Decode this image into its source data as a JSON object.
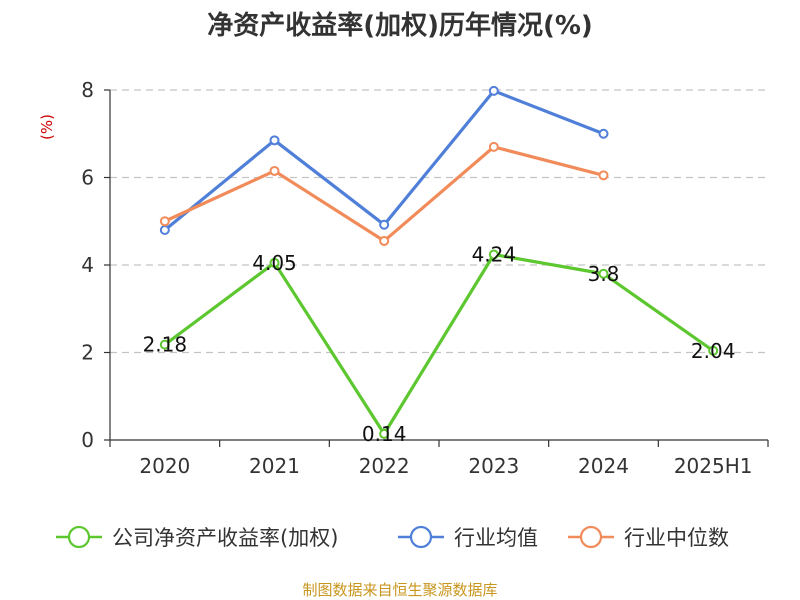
{
  "chart_data": {
    "type": "line",
    "title": "净资产收益率(加权)历年情况(%)",
    "ylabel": "(%)",
    "categories": [
      "2020",
      "2021",
      "2022",
      "2023",
      "2024",
      "2025H1"
    ],
    "ylim": [
      0,
      8
    ],
    "yticks": [
      0,
      2,
      4,
      6,
      8
    ],
    "grid": true,
    "legend_position": "bottom",
    "series": [
      {
        "name": "公司净资产收益率(加权)",
        "color": "#5cc72e",
        "values": [
          2.18,
          4.05,
          0.14,
          4.24,
          3.8,
          2.04
        ],
        "labels": [
          "2.18",
          "4.05",
          "0.14",
          "4.24",
          "3.8",
          "2.04"
        ]
      },
      {
        "name": "行业均值",
        "color": "#4f7fd8",
        "values": [
          4.8,
          6.85,
          4.92,
          7.98,
          7.0,
          null
        ]
      },
      {
        "name": "行业中位数",
        "color": "#f28b5a",
        "values": [
          5.0,
          6.15,
          4.55,
          6.7,
          6.05,
          null
        ]
      }
    ],
    "source": "制图数据来自恒生聚源数据库"
  }
}
